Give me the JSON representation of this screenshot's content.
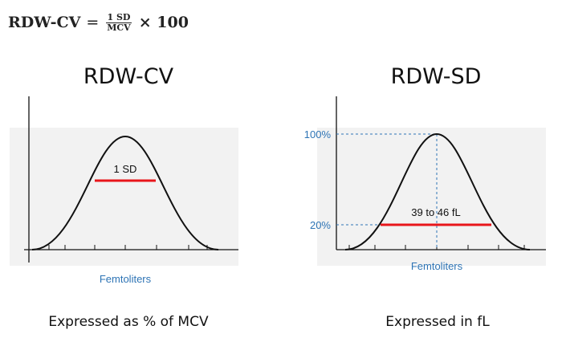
{
  "formula": {
    "lhs": "RDW-CV",
    "equals": "=",
    "numerator": "1 SD",
    "denominator": "MCV",
    "multiplier": "× 100"
  },
  "left_panel": {
    "title": "RDW-CV",
    "bar_label": "1 SD",
    "x_axis_label": "Femtoliters",
    "caption": "Expressed as % of MCV"
  },
  "right_panel": {
    "title": "RDW-SD",
    "bar_label": "39 to 46 fL",
    "x_axis_label": "Femtoliters",
    "top_level_label": "100%",
    "bottom_level_label": "20%",
    "caption": "Expressed in fL"
  },
  "colors": {
    "curve": "#111111",
    "bar": "#e8161b",
    "accent_blue": "#2e74b5",
    "panel_bg": "#f2f2f2"
  }
}
